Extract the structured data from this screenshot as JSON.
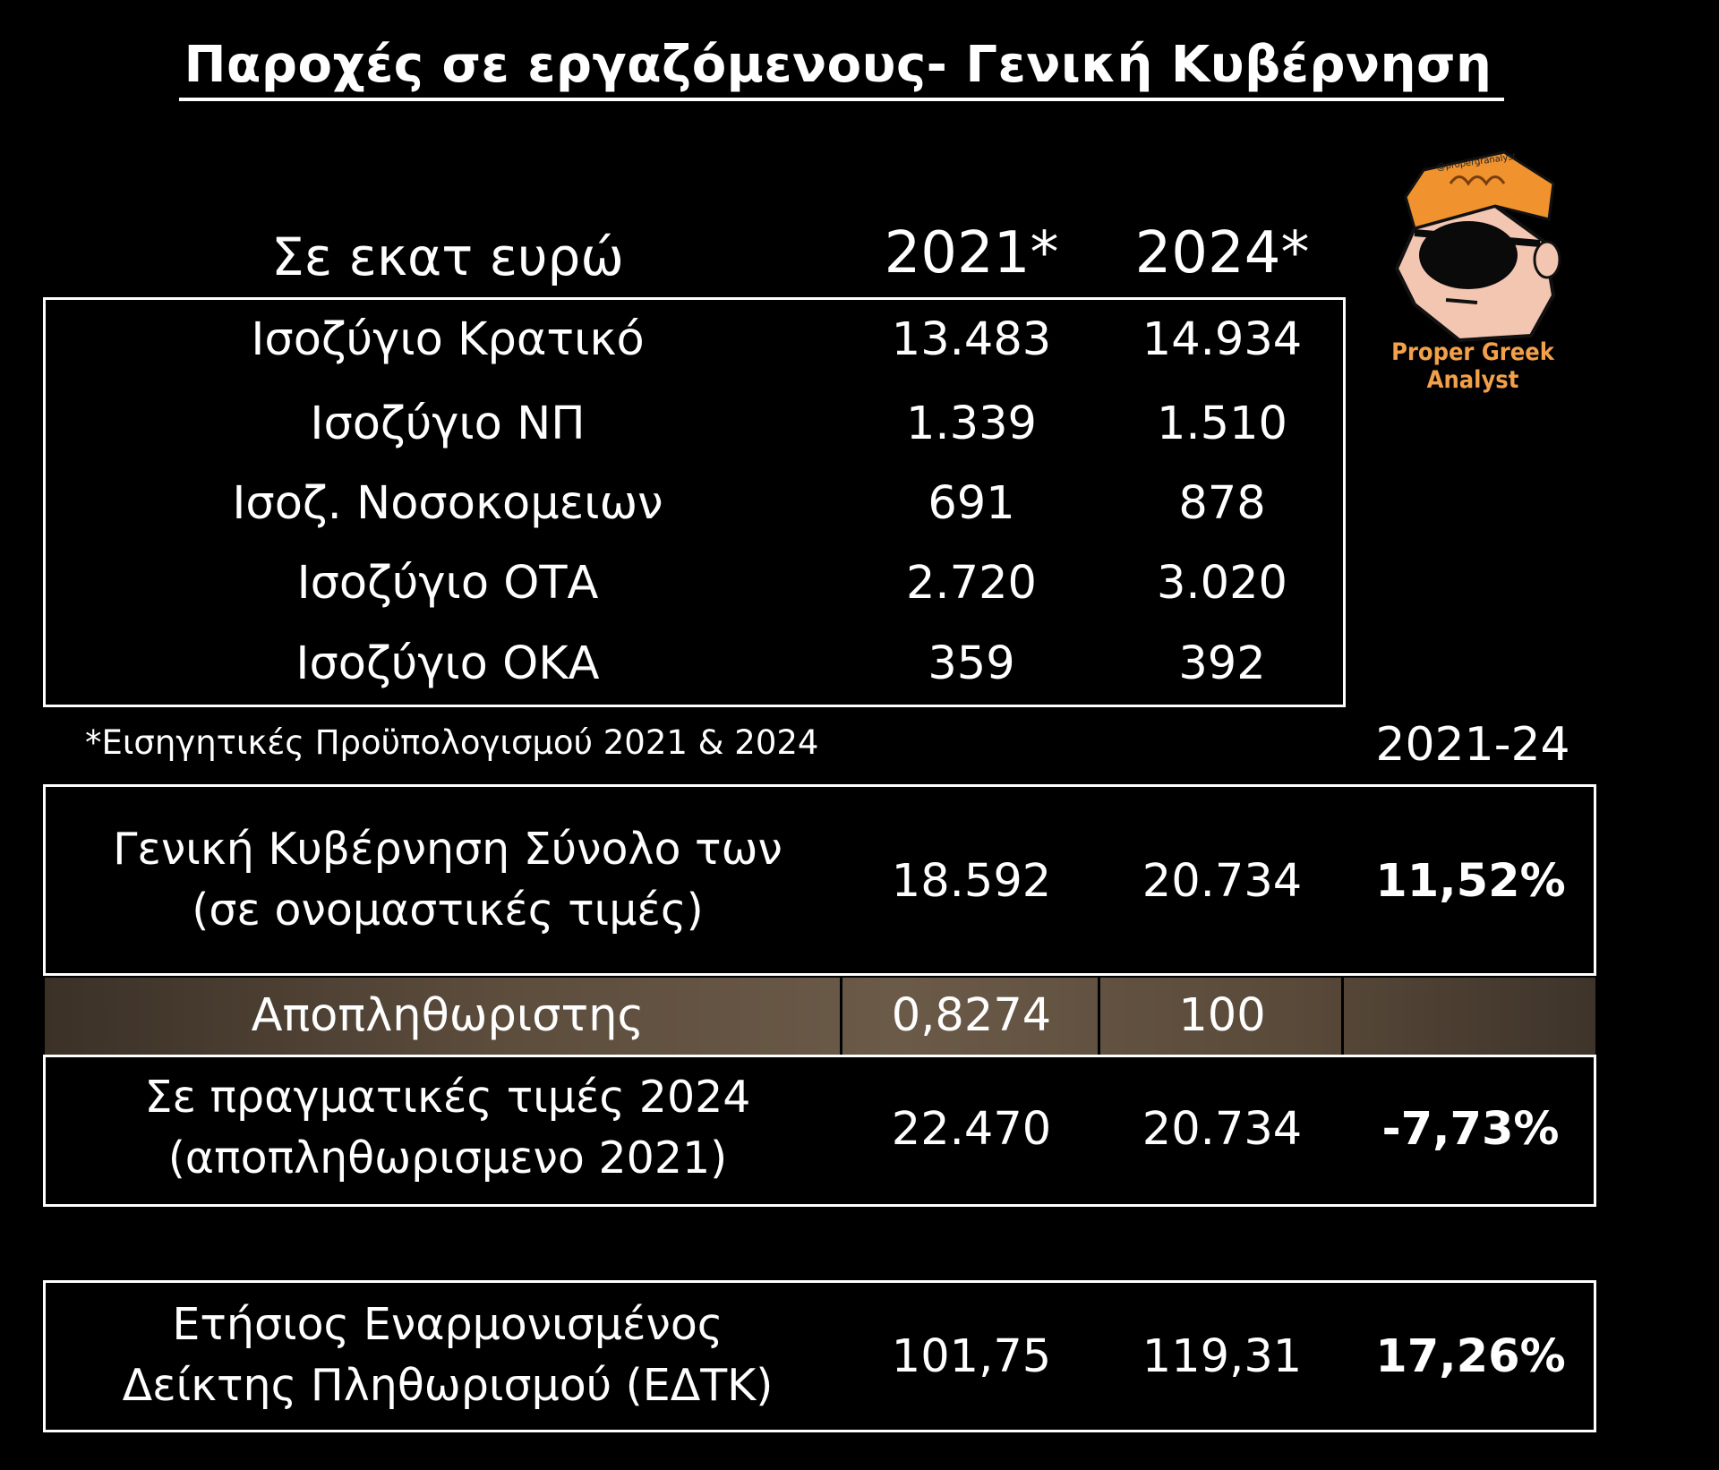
{
  "title": "Παροχές σε εργαζόμενους- Γενική Κυβέρνηση",
  "header": {
    "unit_label": "Σε εκατ ευρώ",
    "year_1": "2021*",
    "year_2": "2024*",
    "change_label": "2021-24"
  },
  "breakdown": [
    {
      "label": "Ισοζύγιο Κρατικό",
      "v2021": "13.483",
      "v2024": "14.934"
    },
    {
      "label": "Ισοζύγιο ΝΠ",
      "v2021": "1.339",
      "v2024": "1.510"
    },
    {
      "label": "Ισοζ. Νοσοκομειων",
      "v2021": "691",
      "v2024": "878"
    },
    {
      "label": "Ισοζύγιο ΟΤΑ",
      "v2021": "2.720",
      "v2024": "3.020"
    },
    {
      "label": "Ισοζύγιο ΟΚΑ",
      "v2021": "359",
      "v2024": "392"
    }
  ],
  "footnote": "*Εισηγητικές Προϋπολογισμού 2021 & 2024",
  "nominal_total": {
    "label_line1": "Γενική Κυβέρνηση Σύνολο των",
    "label_line2": "(σε ονομαστικές τιμές)",
    "v2021": "18.592",
    "v2024": "20.734",
    "change": "11,52%"
  },
  "deflator": {
    "label": "Αποπληθωριστης",
    "v2021": "0,8274",
    "v2024": "100"
  },
  "real_total": {
    "label_line1": "Σε πραγματικές τιμές 2024",
    "label_line2": "(αποπληθωρισμενο 2021)",
    "v2021": "22.470",
    "v2024": "20.734",
    "change": "-7,73%"
  },
  "hicp": {
    "label_line1": "Ετήσιος Εναρμονισμένος",
    "label_line2": "Δείκτης Πληθωρισμού (ΕΔΤΚ)",
    "v2021": "101,75",
    "v2024": "119,31",
    "change": "17,26%"
  },
  "logo": {
    "handle": "@propergranalyst",
    "caption": "Proper Greek Analyst",
    "icon": "cartoon-face-eyepatch-icon",
    "hair_color": "#f0922e",
    "skin_color": "#f3c6b2"
  }
}
